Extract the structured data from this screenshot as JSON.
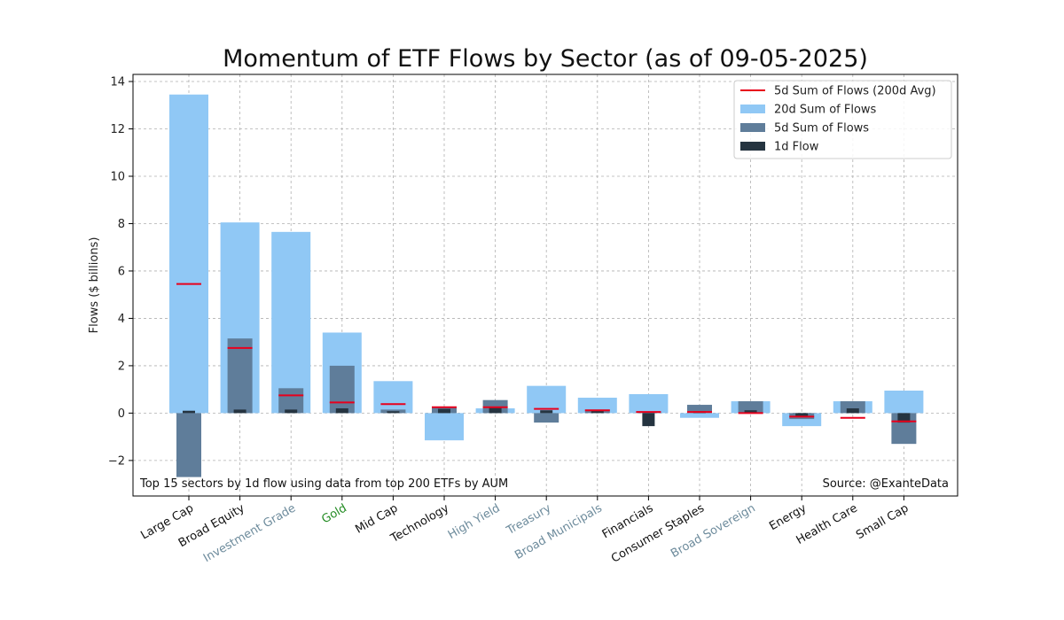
{
  "chart_data": {
    "type": "bar",
    "title": "Momentum of ETF Flows by Sector (as of 09-05-2025)",
    "ylabel": "Flows ($ billions)",
    "xlabel": "",
    "ylim": [
      -3.5,
      14.3
    ],
    "yticks": [
      -2,
      0,
      2,
      4,
      6,
      8,
      10,
      12,
      14
    ],
    "grid": true,
    "legend_placement": "top-right",
    "categories": [
      "Large Cap",
      "Broad Equity",
      "Investment Grade",
      "Gold",
      "Mid Cap",
      "Technology",
      "High Yield",
      "Treasury",
      "Broad Municipals",
      "Financials",
      "Consumer Staples",
      "Broad Sovereign",
      "Energy",
      "Health Care",
      "Small Cap"
    ],
    "category_colors": [
      "#111111",
      "#111111",
      "#6d8b9c",
      "#228b22",
      "#111111",
      "#111111",
      "#6d8b9c",
      "#6d8b9c",
      "#6d8b9c",
      "#111111",
      "#111111",
      "#6d8b9c",
      "#111111",
      "#111111",
      "#111111"
    ],
    "series": [
      {
        "name": "20d Sum of Flows",
        "color": "#90c8f5",
        "values": [
          13.45,
          8.05,
          7.65,
          3.4,
          1.35,
          -1.15,
          0.2,
          1.15,
          0.65,
          0.8,
          -0.2,
          0.5,
          -0.55,
          0.5,
          0.95
        ]
      },
      {
        "name": "5d Sum of Flows",
        "color": "#5f7d9a",
        "values": [
          -2.7,
          3.15,
          1.05,
          2.0,
          0.15,
          0.25,
          0.55,
          -0.4,
          0.15,
          0.05,
          0.35,
          0.5,
          -0.25,
          0.5,
          -1.3
        ]
      },
      {
        "name": "1d Flow",
        "color": "#253440",
        "values": [
          0.1,
          0.15,
          0.15,
          0.2,
          0.08,
          0.18,
          0.25,
          0.12,
          0.1,
          -0.55,
          0.08,
          0.12,
          -0.15,
          0.2,
          -0.4
        ]
      },
      {
        "name": "5d Sum of Flows (200d Avg)",
        "color": "#e8001c",
        "values": [
          5.45,
          2.75,
          0.75,
          0.45,
          0.38,
          0.25,
          0.25,
          0.18,
          0.12,
          0.05,
          0.05,
          0.0,
          -0.15,
          -0.2,
          -0.35
        ]
      }
    ],
    "annotations": {
      "footnote_left": "Top 15 sectors by 1d flow using data from top 200 ETFs by AUM",
      "footnote_right": "Source: @ExanteData"
    }
  }
}
